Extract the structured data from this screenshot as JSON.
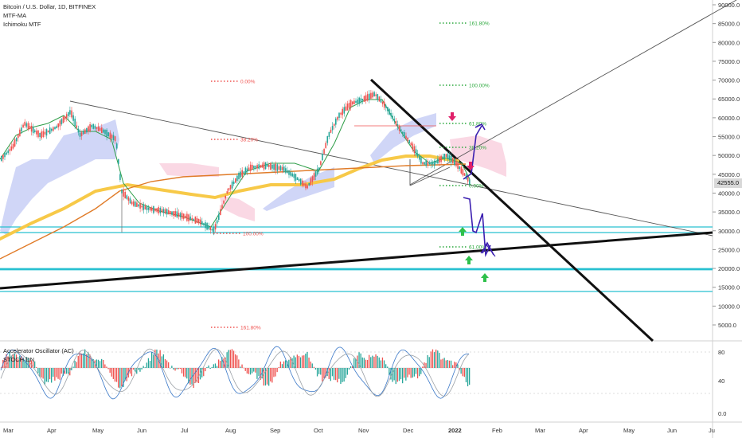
{
  "header": {
    "symbol": "Bitcoin / U.S. Dollar, 1D, BITFINEX",
    "indicator_1": "MTF-MA",
    "indicator_2": "Ichimoku MTF"
  },
  "oscillator": {
    "title": "Accelerator Oscillator (AC)",
    "subtitle": "STOCH DN",
    "ticks": [
      {
        "label": "80",
        "value": 80
      },
      {
        "label": "40",
        "value": 40
      },
      {
        "label": "0.0",
        "value": 0
      }
    ]
  },
  "current_price": "42555.0",
  "price_axis_labels": [
    "90000.0",
    "85000.0",
    "80000.0",
    "75000.0",
    "70000.0",
    "65000.0",
    "60000.0",
    "55000.0",
    "50000.0",
    "45000.0",
    "40000.0",
    "35000.0",
    "30000.0",
    "25000.0",
    "20000.0",
    "15000.0",
    "10000.0",
    "5000.0"
  ],
  "time_axis_labels": [
    "Mar",
    "Apr",
    "May",
    "Jun",
    "Jul",
    "Aug",
    "Sep",
    "Oct",
    "Nov",
    "Dec",
    "2022",
    "Feb",
    "Mar",
    "Apr",
    "May",
    "Jun",
    "Ju"
  ],
  "fib_labels": {
    "top_0": "0.00%",
    "top_38": "38.20%",
    "top_100": "100.00%",
    "top_bottom_161": "161.80%",
    "ext_161": "161.80%",
    "ext_100": "100.00%",
    "ext_61": "61.80%",
    "ext_38": "38.20%",
    "ext_0": "0.00%",
    "ext_m61": "61.00%"
  },
  "colors": {
    "bull": "#26a69a",
    "bear": "#ef5350",
    "ma_orange": "#f7c948",
    "ma_dark": "#e07b28",
    "cloud_blue": "#aab4f0",
    "cloud_pink": "#f8c8d8",
    "support_cyan": "#28c0d0",
    "projection_purple": "#3b1fb0",
    "arrow_green": "#2ec04a",
    "arrow_pink": "#e0206a"
  },
  "chart_data": {
    "type": "candlestick",
    "title": "Bitcoin / U.S. Dollar, 1D, BITFINEX",
    "y_axis": {
      "min": 5000,
      "max": 90000,
      "unit": "USD"
    },
    "x_axis": {
      "start": "2021-03",
      "end": "2022-07"
    },
    "monthly_closes_approx": [
      {
        "month": "2021-03",
        "value": 58000
      },
      {
        "month": "2021-04",
        "value": 57000
      },
      {
        "month": "2021-05",
        "value": 37000
      },
      {
        "month": "2021-06",
        "value": 35000
      },
      {
        "month": "2021-07",
        "value": 41000
      },
      {
        "month": "2021-08",
        "value": 47000
      },
      {
        "month": "2021-09",
        "value": 43000
      },
      {
        "month": "2021-10",
        "value": 61000
      },
      {
        "month": "2021-11",
        "value": 57000
      },
      {
        "month": "2021-12",
        "value": 46000
      },
      {
        "month": "2022-01",
        "value": 42555
      }
    ],
    "horizontal_levels": [
      31000,
      30000,
      20000,
      14000
    ],
    "last_price": 42555
  }
}
